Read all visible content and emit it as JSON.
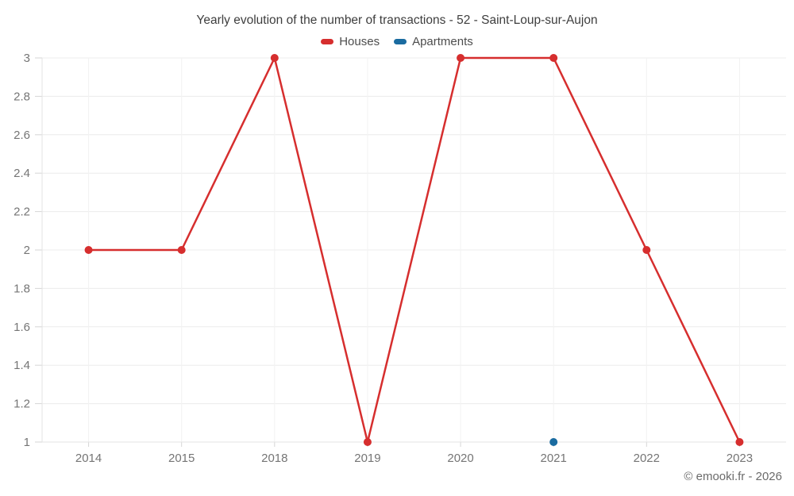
{
  "footer": {
    "copyright": "© emooki.fr - 2026"
  },
  "chart_data": {
    "type": "line",
    "title": "Yearly evolution of the number of transactions - 52 - Saint-Loup-sur-Aujon",
    "categories": [
      "2014",
      "2015",
      "2018",
      "2019",
      "2020",
      "2021",
      "2022",
      "2023"
    ],
    "series": [
      {
        "name": "Houses",
        "color": "#d62e2e",
        "values": [
          2,
          2,
          3,
          1,
          3,
          3,
          2,
          1
        ]
      },
      {
        "name": "Apartments",
        "color": "#1a6ba0",
        "values": [
          null,
          null,
          null,
          null,
          null,
          1,
          null,
          null
        ]
      }
    ],
    "xlabel": "",
    "ylabel": "",
    "ylim": [
      1,
      3
    ],
    "ytick_step": 0.2,
    "ytick_labels": [
      "1",
      "1.2",
      "1.4",
      "1.6",
      "1.8",
      "2",
      "2.2",
      "2.4",
      "2.6",
      "2.8",
      "3"
    ],
    "grid": true,
    "legend_position": "top"
  },
  "style": {
    "grid_color_h": "#ececec",
    "grid_color_v": "#f2f2f2",
    "axis_color": "#e3e3e3",
    "tick_color": "#d6d6d6",
    "axis_label_color": "#757575"
  }
}
